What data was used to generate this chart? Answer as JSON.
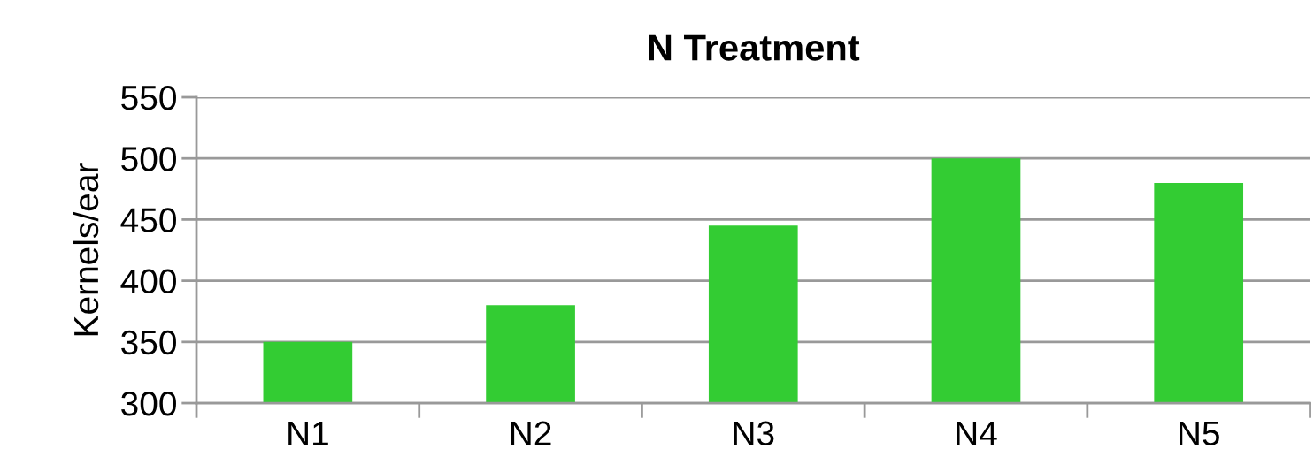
{
  "chart_data": {
    "type": "bar",
    "title": "N Treatment",
    "ylabel": "Kernels/ear",
    "categories": [
      "N1",
      "N2",
      "N3",
      "N4",
      "N5"
    ],
    "values": [
      350,
      380,
      445,
      500,
      480
    ],
    "color": "#33cc33",
    "ylim": [
      300,
      550
    ],
    "yticks": [
      300,
      350,
      400,
      450,
      500,
      550
    ],
    "grid": "y",
    "legend": false
  }
}
